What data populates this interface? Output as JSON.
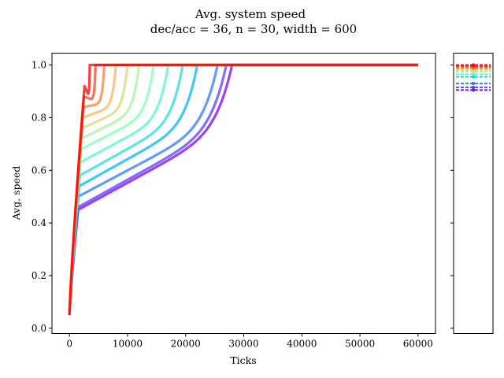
{
  "chart_data": {
    "type": "line",
    "title": "Avg. system speed",
    "subtitle": "dec/acc = 36, n = 30, width = 600",
    "xlabel": "Ticks",
    "ylabel": "Avg. speed",
    "xlim": [
      -3000,
      63000
    ],
    "ylim": [
      -0.02,
      1.045
    ],
    "xticks": [
      0,
      10000,
      20000,
      30000,
      40000,
      50000,
      60000
    ],
    "xtick_labels": [
      "0",
      "10000",
      "20000",
      "30000",
      "40000",
      "50000",
      "60000"
    ],
    "yticks": [
      0.0,
      0.2,
      0.4,
      0.6,
      0.8,
      1.0
    ],
    "ytick_labels": [
      "0.0",
      "0.2",
      "0.4",
      "0.6",
      "0.8",
      "1.0"
    ],
    "colormap": "rainbow",
    "colormap_stops": [
      "#8000ff",
      "#4062fa",
      "#00b5eb",
      "#40ecd4",
      "#80ffb4",
      "#c0eb8d",
      "#ffb360",
      "#ff6030",
      "#ff0000"
    ],
    "x_end": 60000,
    "series_groups": [
      {
        "color_index": 0.0,
        "plateau_speed": 0.45,
        "knee_x": 1500,
        "saturation_x": 28000
      },
      {
        "color_index": 0.08,
        "plateau_speed": 0.46,
        "knee_x": 1500,
        "saturation_x": 27000
      },
      {
        "color_index": 0.16,
        "plateau_speed": 0.5,
        "knee_x": 1500,
        "saturation_x": 25500
      },
      {
        "color_index": 0.25,
        "plateau_speed": 0.54,
        "knee_x": 1700,
        "saturation_x": 22000
      },
      {
        "color_index": 0.33,
        "plateau_speed": 0.58,
        "knee_x": 1800,
        "saturation_x": 19500
      },
      {
        "color_index": 0.42,
        "plateau_speed": 0.63,
        "knee_x": 1900,
        "saturation_x": 17000
      },
      {
        "color_index": 0.5,
        "plateau_speed": 0.68,
        "knee_x": 2000,
        "saturation_x": 14500
      },
      {
        "color_index": 0.58,
        "plateau_speed": 0.72,
        "knee_x": 2100,
        "saturation_x": 12000
      },
      {
        "color_index": 0.67,
        "plateau_speed": 0.76,
        "knee_x": 2200,
        "saturation_x": 10000
      },
      {
        "color_index": 0.75,
        "plateau_speed": 0.8,
        "knee_x": 2300,
        "saturation_x": 8000
      },
      {
        "color_index": 0.83,
        "plateau_speed": 0.84,
        "knee_x": 2400,
        "saturation_x": 6000
      },
      {
        "color_index": 0.92,
        "plateau_speed": 0.88,
        "knee_x": 2500,
        "saturation_x": 4500
      },
      {
        "color_index": 1.0,
        "plateau_speed": 0.92,
        "knee_x": 2600,
        "saturation_x": 3500
      }
    ],
    "final_speeds": [
      {
        "color_index": 0.0,
        "value": 0.905
      },
      {
        "color_index": 0.08,
        "value": 0.915
      },
      {
        "color_index": 0.16,
        "value": 0.93
      },
      {
        "color_index": 0.3,
        "value": 0.955
      },
      {
        "color_index": 0.45,
        "value": 0.965
      },
      {
        "color_index": 0.55,
        "value": 0.975
      },
      {
        "color_index": 0.65,
        "value": 0.98
      },
      {
        "color_index": 0.75,
        "value": 0.985
      },
      {
        "color_index": 0.85,
        "value": 0.99
      },
      {
        "color_index": 0.93,
        "value": 0.995
      },
      {
        "color_index": 1.0,
        "value": 1.0
      }
    ]
  }
}
